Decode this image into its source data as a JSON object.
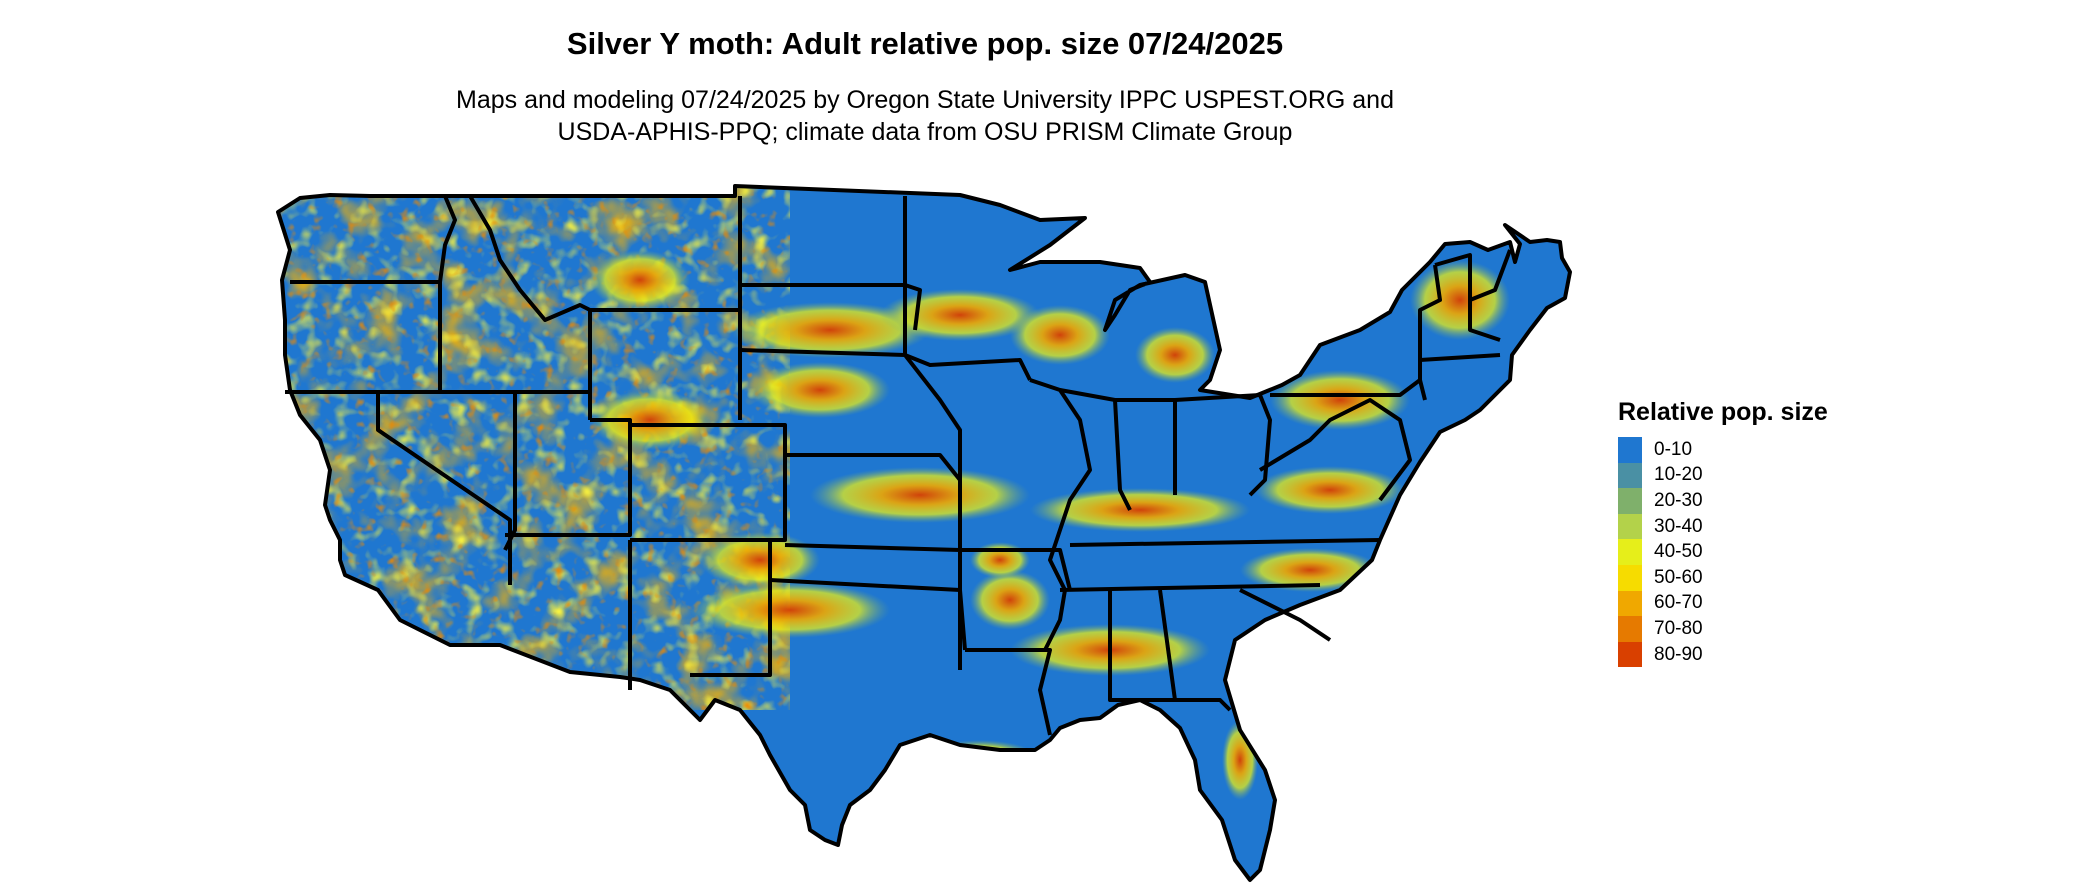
{
  "map": {
    "title": "Silver Y moth: Adult relative pop. size 07/24/2025",
    "subtitle_lines": [
      "Maps and modeling 07/24/2025 by Oregon State University IPPC USPEST.ORG and",
      "USDA-APHIS-PPQ; climate data from OSU PRISM Climate Group"
    ],
    "region": "Contiguous United States",
    "base_color": "#1f77d0",
    "border_color": "#000000"
  },
  "legend": {
    "title": "Relative pop. size",
    "items": [
      {
        "label": "0-10",
        "color": "#1f77d0"
      },
      {
        "label": "10-20",
        "color": "#4a90a4"
      },
      {
        "label": "20-30",
        "color": "#7fb06b"
      },
      {
        "label": "30-40",
        "color": "#b3d24a"
      },
      {
        "label": "40-50",
        "color": "#e6ee1a"
      },
      {
        "label": "50-60",
        "color": "#f6dc00"
      },
      {
        "label": "60-70",
        "color": "#f0a800"
      },
      {
        "label": "70-80",
        "color": "#e67a00"
      },
      {
        "label": "80-90",
        "color": "#d94000"
      }
    ]
  }
}
